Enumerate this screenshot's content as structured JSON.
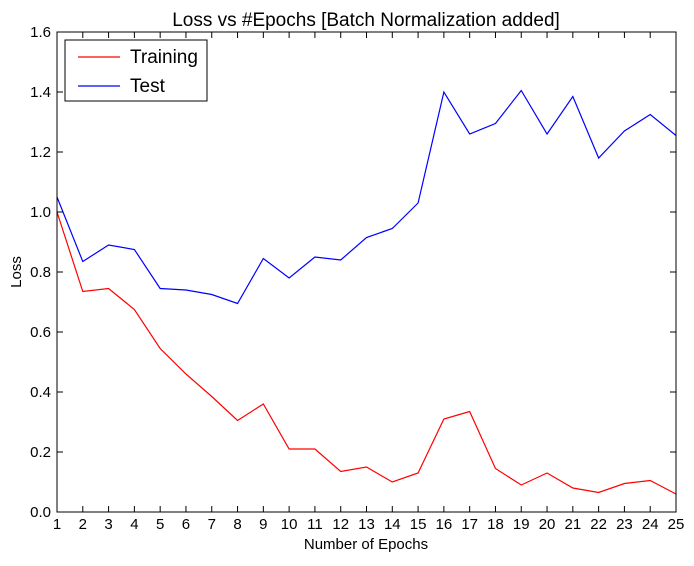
{
  "chart_data": {
    "type": "line",
    "title": "Loss vs #Epochs [Batch Normalization added]",
    "xlabel": "Number of Epochs",
    "ylabel": "Loss",
    "x": [
      1,
      2,
      3,
      4,
      5,
      6,
      7,
      8,
      9,
      10,
      11,
      12,
      13,
      14,
      15,
      16,
      17,
      18,
      19,
      20,
      21,
      22,
      23,
      24,
      25
    ],
    "xlim": [
      1,
      25
    ],
    "ylim": [
      0.0,
      1.6
    ],
    "yticks": [
      "0.0",
      "0.2",
      "0.4",
      "0.6",
      "0.8",
      "1.0",
      "1.2",
      "1.4",
      "1.6"
    ],
    "xticks": [
      "1",
      "2",
      "3",
      "4",
      "5",
      "6",
      "7",
      "8",
      "9",
      "10",
      "11",
      "12",
      "13",
      "14",
      "15",
      "16",
      "17",
      "18",
      "19",
      "20",
      "21",
      "22",
      "23",
      "24",
      "25"
    ],
    "grid": false,
    "legend_position": "top-left",
    "series": [
      {
        "name": "Training",
        "color": "#ff0000",
        "values": [
          1.0,
          0.735,
          0.745,
          0.675,
          0.545,
          0.46,
          0.385,
          0.305,
          0.36,
          0.21,
          0.21,
          0.135,
          0.15,
          0.1,
          0.13,
          0.31,
          0.335,
          0.145,
          0.09,
          0.13,
          0.08,
          0.065,
          0.095,
          0.105,
          0.06
        ]
      },
      {
        "name": "Test",
        "color": "#0000ff",
        "values": [
          1.05,
          0.835,
          0.89,
          0.875,
          0.745,
          0.74,
          0.725,
          0.695,
          0.845,
          0.78,
          0.85,
          0.84,
          0.915,
          0.945,
          1.03,
          1.4,
          1.26,
          1.295,
          1.405,
          1.26,
          1.385,
          1.18,
          1.27,
          1.325,
          1.255
        ]
      }
    ]
  }
}
